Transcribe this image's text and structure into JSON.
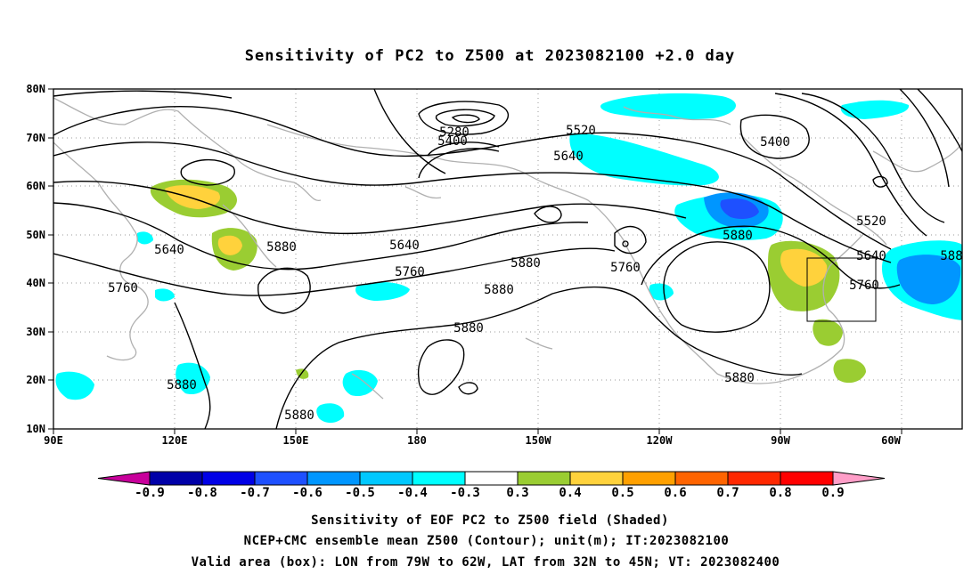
{
  "title": "Sensitivity of PC2 to Z500 at 2023082100 +2.0 day",
  "map": {
    "lat_labels": [
      "80N",
      "70N",
      "60N",
      "50N",
      "40N",
      "30N",
      "20N",
      "10N"
    ],
    "lon_labels": [
      "90E",
      "120E",
      "150E",
      "180",
      "150W",
      "120W",
      "90W",
      "60W"
    ],
    "contour_labels": [
      "5280",
      "5400",
      "5520",
      "5640",
      "5400",
      "5520",
      "5640",
      "5760",
      "5880",
      "5640",
      "5880",
      "5640",
      "5760",
      "5880",
      "5760",
      "5880",
      "5880",
      "5880",
      "5880",
      "5760",
      "5880",
      "588"
    ],
    "valid_box": {
      "lon_min": -79,
      "lon_max": -62,
      "lat_min": 32,
      "lat_max": 45
    }
  },
  "colorbar": {
    "labels": [
      "-0.9",
      "-0.8",
      "-0.7",
      "-0.6",
      "-0.5",
      "-0.4",
      "-0.3",
      "0.3",
      "0.4",
      "0.5",
      "0.6",
      "0.7",
      "0.8",
      "0.9"
    ],
    "colors": [
      "#c8009b",
      "#0000a8",
      "#0000e6",
      "#1e50ff",
      "#0096ff",
      "#00c8ff",
      "#00ffff",
      "#ffffff",
      "#9acd32",
      "#ffd23c",
      "#ffa000",
      "#ff6400",
      "#ff2800",
      "#ff0000",
      "#ff9ec8"
    ]
  },
  "footer": {
    "line1": "Sensitivity of EOF PC2 to Z500 field (Shaded)",
    "line2": "NCEP+CMC ensemble mean Z500 (Contour); unit(m); IT:2023082100",
    "line3": "Valid area (box): LON from 79W to 62W, LAT from 32N to 45N; VT: 2023082400"
  }
}
